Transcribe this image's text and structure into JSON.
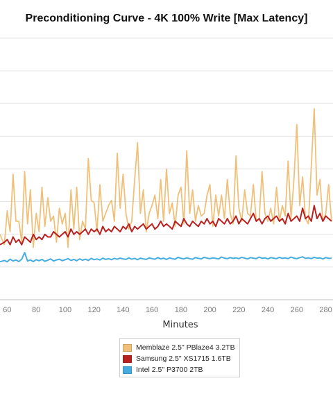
{
  "chart_data": {
    "type": "line",
    "title": "Preconditioning Curve - 4K 100% Write [Max Latency]",
    "xlabel": "Minutes",
    "ylabel": "",
    "xlim": [
      55,
      285
    ],
    "ylim": [
      0,
      100
    ],
    "x_ticks": [
      60,
      80,
      100,
      120,
      140,
      160,
      180,
      200,
      220,
      240,
      260,
      280
    ],
    "grid": true,
    "legend_position": "bottom",
    "series": [
      {
        "name": "Memblaze 2.5\" PBlaze4 3.2TB",
        "color": "#F0C07A",
        "x": [
          55,
          58,
          60,
          62,
          64,
          66,
          68,
          70,
          72,
          74,
          76,
          78,
          80,
          82,
          84,
          86,
          88,
          90,
          92,
          94,
          96,
          98,
          100,
          102,
          104,
          106,
          108,
          110,
          112,
          114,
          116,
          118,
          120,
          122,
          124,
          126,
          128,
          130,
          132,
          134,
          136,
          138,
          140,
          142,
          144,
          146,
          148,
          150,
          152,
          154,
          156,
          158,
          160,
          162,
          164,
          166,
          168,
          170,
          172,
          174,
          176,
          178,
          180,
          182,
          184,
          186,
          188,
          190,
          192,
          194,
          196,
          198,
          200,
          202,
          204,
          206,
          208,
          210,
          212,
          214,
          216,
          218,
          220,
          222,
          224,
          226,
          228,
          230,
          232,
          234,
          236,
          238,
          240,
          242,
          244,
          246,
          248,
          250,
          252,
          254,
          256,
          258,
          260,
          262,
          264,
          266,
          268,
          270,
          272,
          274,
          276,
          278,
          280,
          282,
          284
        ],
        "values": [
          25,
          21,
          34,
          26,
          48,
          30,
          30,
          22,
          49,
          29,
          42,
          20,
          33,
          26,
          43,
          28,
          39,
          30,
          32,
          22,
          35,
          29,
          33,
          20,
          42,
          27,
          43,
          23,
          30,
          27,
          54,
          38,
          37,
          26,
          44,
          30,
          33,
          36,
          38,
          30,
          56,
          35,
          48,
          33,
          27,
          30,
          46,
          60,
          33,
          42,
          26,
          33,
          36,
          40,
          31,
          46,
          30,
          50,
          33,
          37,
          28,
          40,
          43,
          29,
          57,
          33,
          42,
          30,
          36,
          32,
          33,
          40,
          44,
          28,
          40,
          32,
          40,
          31,
          46,
          33,
          29,
          55,
          35,
          30,
          42,
          33,
          32,
          44,
          30,
          31,
          49,
          33,
          30,
          35,
          29,
          43,
          30,
          36,
          32,
          53,
          31,
          46,
          67,
          36,
          47,
          31,
          29,
          51,
          73,
          40,
          46,
          30,
          33,
          44,
          30
        ]
      },
      {
        "name": "Samsung 2.5\" XS1715 1.6TB",
        "color": "#B8211F",
        "x": [
          55,
          58,
          60,
          62,
          64,
          66,
          68,
          70,
          72,
          74,
          76,
          78,
          80,
          82,
          84,
          86,
          88,
          90,
          92,
          94,
          96,
          98,
          100,
          102,
          104,
          106,
          108,
          110,
          112,
          114,
          116,
          118,
          120,
          122,
          124,
          126,
          128,
          130,
          132,
          134,
          136,
          138,
          140,
          142,
          144,
          146,
          148,
          150,
          152,
          154,
          156,
          158,
          160,
          162,
          164,
          166,
          168,
          170,
          172,
          174,
          176,
          178,
          180,
          182,
          184,
          186,
          188,
          190,
          192,
          194,
          196,
          198,
          200,
          202,
          204,
          206,
          208,
          210,
          212,
          214,
          216,
          218,
          220,
          222,
          224,
          226,
          228,
          230,
          232,
          234,
          236,
          238,
          240,
          242,
          244,
          246,
          248,
          250,
          252,
          254,
          256,
          258,
          260,
          262,
          264,
          266,
          268,
          270,
          272,
          274,
          276,
          278,
          280,
          282,
          284
        ],
        "values": [
          21,
          22,
          23,
          21,
          24,
          22,
          23,
          21,
          24,
          23,
          22,
          25,
          23,
          24,
          23,
          25,
          24,
          24,
          26,
          25,
          24,
          25,
          26,
          24,
          27,
          25,
          26,
          25,
          26,
          27,
          25,
          27,
          26,
          27,
          25,
          28,
          26,
          27,
          26,
          28,
          27,
          26,
          28,
          27,
          29,
          26,
          28,
          27,
          28,
          29,
          27,
          28,
          29,
          27,
          28,
          30,
          28,
          29,
          28,
          27,
          30,
          29,
          28,
          31,
          29,
          28,
          30,
          29,
          28,
          30,
          29,
          31,
          29,
          30,
          28,
          31,
          30,
          29,
          31,
          29,
          30,
          32,
          29,
          31,
          30,
          29,
          31,
          33,
          30,
          31,
          29,
          31,
          32,
          30,
          31,
          32,
          30,
          31,
          29,
          33,
          30,
          31,
          32,
          30,
          35,
          31,
          32,
          30,
          36,
          31,
          33,
          30,
          32,
          31,
          30
        ]
      },
      {
        "name": "Intel 2.5\" P3700 2TB",
        "color": "#45ACE0",
        "x": [
          55,
          58,
          60,
          62,
          64,
          66,
          68,
          70,
          72,
          74,
          76,
          78,
          80,
          82,
          84,
          86,
          88,
          90,
          92,
          94,
          96,
          98,
          100,
          102,
          104,
          106,
          108,
          110,
          112,
          114,
          116,
          118,
          120,
          122,
          124,
          126,
          128,
          130,
          132,
          134,
          136,
          138,
          140,
          142,
          144,
          146,
          148,
          150,
          152,
          154,
          156,
          158,
          160,
          162,
          164,
          166,
          168,
          170,
          172,
          174,
          176,
          178,
          180,
          182,
          184,
          186,
          188,
          190,
          192,
          194,
          196,
          198,
          200,
          202,
          204,
          206,
          208,
          210,
          212,
          214,
          216,
          218,
          220,
          222,
          224,
          226,
          228,
          230,
          232,
          234,
          236,
          238,
          240,
          242,
          244,
          246,
          248,
          250,
          252,
          254,
          256,
          258,
          260,
          262,
          264,
          266,
          268,
          270,
          272,
          274,
          276,
          278,
          280,
          282,
          284
        ],
        "values": [
          14.5,
          15,
          14.5,
          15.5,
          14.8,
          15.2,
          14.6,
          15.5,
          18,
          14.8,
          15.2,
          14.6,
          15.3,
          14.9,
          15.4,
          14.7,
          15.1,
          15.6,
          14.8,
          15.2,
          15.5,
          14.9,
          15.3,
          15.7,
          15,
          15.4,
          14.9,
          15.6,
          15.1,
          15.5,
          15,
          15.8,
          15.3,
          15.6,
          15.2,
          15.9,
          15.4,
          15.7,
          15.3,
          15.8,
          15.5,
          15.9,
          15.6,
          15.4,
          16,
          15.5,
          15.8,
          15.3,
          15.9,
          15.6,
          15.4,
          16,
          15.7,
          15.5,
          16.1,
          15.6,
          15.9,
          15.4,
          16,
          15.7,
          15.5,
          16.2,
          15.8,
          15.6,
          16,
          15.7,
          15.5,
          16.1,
          15.8,
          15.6,
          16.2,
          15.9,
          15.7,
          16,
          15.8,
          15.6,
          16.3,
          15.9,
          15.7,
          16.1,
          15.8,
          16,
          15.7,
          16.2,
          15.9,
          15.6,
          16.1,
          15.9,
          15.7,
          16.3,
          15.8,
          16,
          15.6,
          16.1,
          15.9,
          15.7,
          16.2,
          15.8,
          16,
          15.7,
          16.3,
          15.9,
          15.7,
          16.1,
          16.4,
          15.8,
          16,
          15.7,
          16.2,
          15.9,
          16,
          15.6,
          16.1,
          15.8,
          15.9
        ]
      }
    ]
  }
}
